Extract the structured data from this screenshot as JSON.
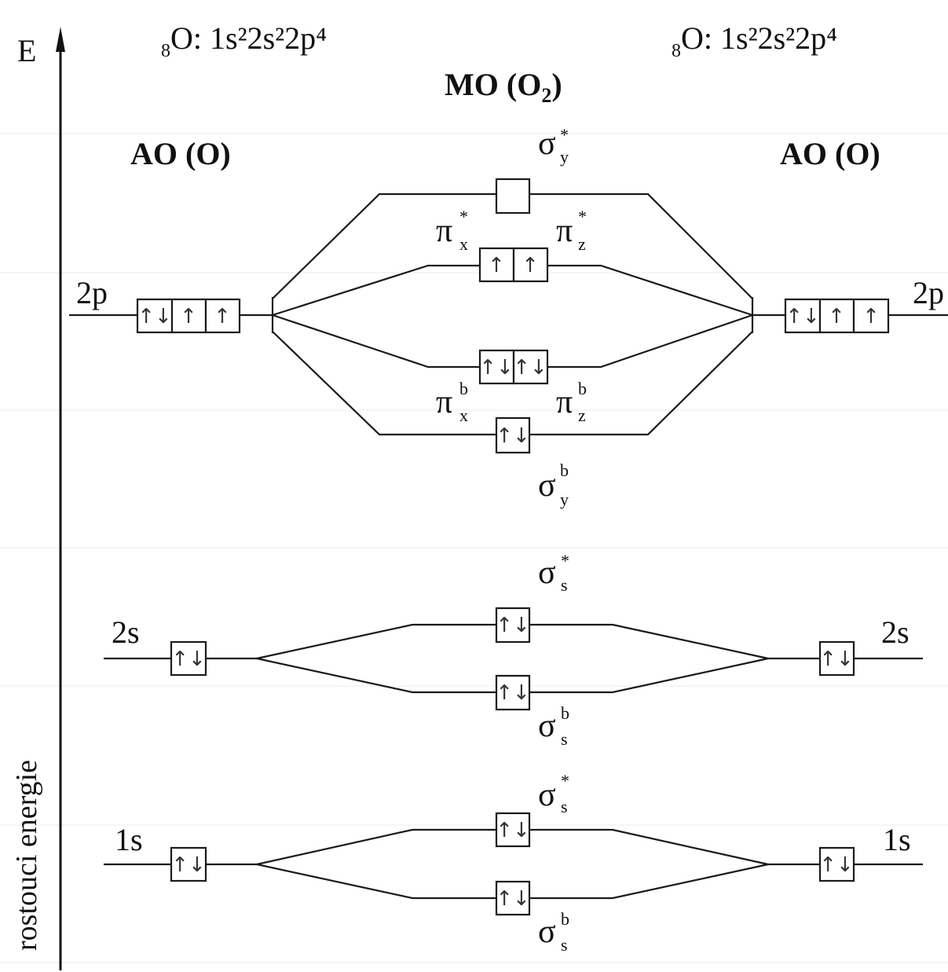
{
  "axis": {
    "label": "E",
    "caption": "rostouci energie"
  },
  "config": {
    "left": {
      "element": "O",
      "subscript": "8",
      "configuration": "1s²2s²2p⁴"
    },
    "right": {
      "element": "O",
      "subscript": "8",
      "configuration": "1s²2s²2p⁴"
    }
  },
  "titles": {
    "mo": "MO (O",
    "mo_sub": "2",
    "mo_close": ")",
    "ao_left": "AO (O)",
    "ao_right": "AO (O)"
  },
  "ao_levels": {
    "p_left": "2p",
    "p_right": "2p",
    "s2_left": "2s",
    "s2_right": "2s",
    "s1_left": "1s",
    "s1_right": "1s"
  },
  "mo_labels": {
    "sigma_y_star": {
      "sym": "σ",
      "sub": "y",
      "sup": "*"
    },
    "pi_x_star": {
      "sym": "π",
      "sub": "x",
      "sup": "*"
    },
    "pi_z_star": {
      "sym": "π",
      "sub": "z",
      "sup": "*"
    },
    "pi_x_b": {
      "sym": "π",
      "sub": "x",
      "sup": "b"
    },
    "pi_z_b": {
      "sym": "π",
      "sub": "z",
      "sup": "b"
    },
    "sigma_y_b": {
      "sym": "σ",
      "sub": "y",
      "sup": "b"
    },
    "sigma_2s_star": {
      "sym": "σ",
      "sub": "s",
      "sup": "*"
    },
    "sigma_2s_b": {
      "sym": "σ",
      "sub": "s",
      "sup": "b"
    },
    "sigma_1s_star": {
      "sym": "σ",
      "sub": "s",
      "sup": "*"
    },
    "sigma_1s_b": {
      "sym": "σ",
      "sub": "s",
      "sup": "b"
    }
  },
  "occupancy": {
    "ao_2p_left": [
      "↑↓",
      "↑",
      "↑"
    ],
    "ao_2p_right": [
      "↑↓",
      "↑",
      "↑"
    ],
    "ao_2s_left": [
      "↑↓"
    ],
    "ao_2s_right": [
      "↑↓"
    ],
    "ao_1s_left": [
      "↑↓"
    ],
    "ao_1s_right": [
      "↑↓"
    ],
    "mo_sigma_y_star": [
      ""
    ],
    "mo_pi_star": [
      "↑",
      "↑"
    ],
    "mo_pi_b": [
      "↑↓",
      "↑↓"
    ],
    "mo_sigma_y_b": [
      "↑↓"
    ],
    "mo_sigma_2s_star": [
      "↑↓"
    ],
    "mo_sigma_2s_b": [
      "↑↓"
    ],
    "mo_sigma_1s_star": [
      "↑↓"
    ],
    "mo_sigma_1s_b": [
      "↑↓"
    ]
  }
}
